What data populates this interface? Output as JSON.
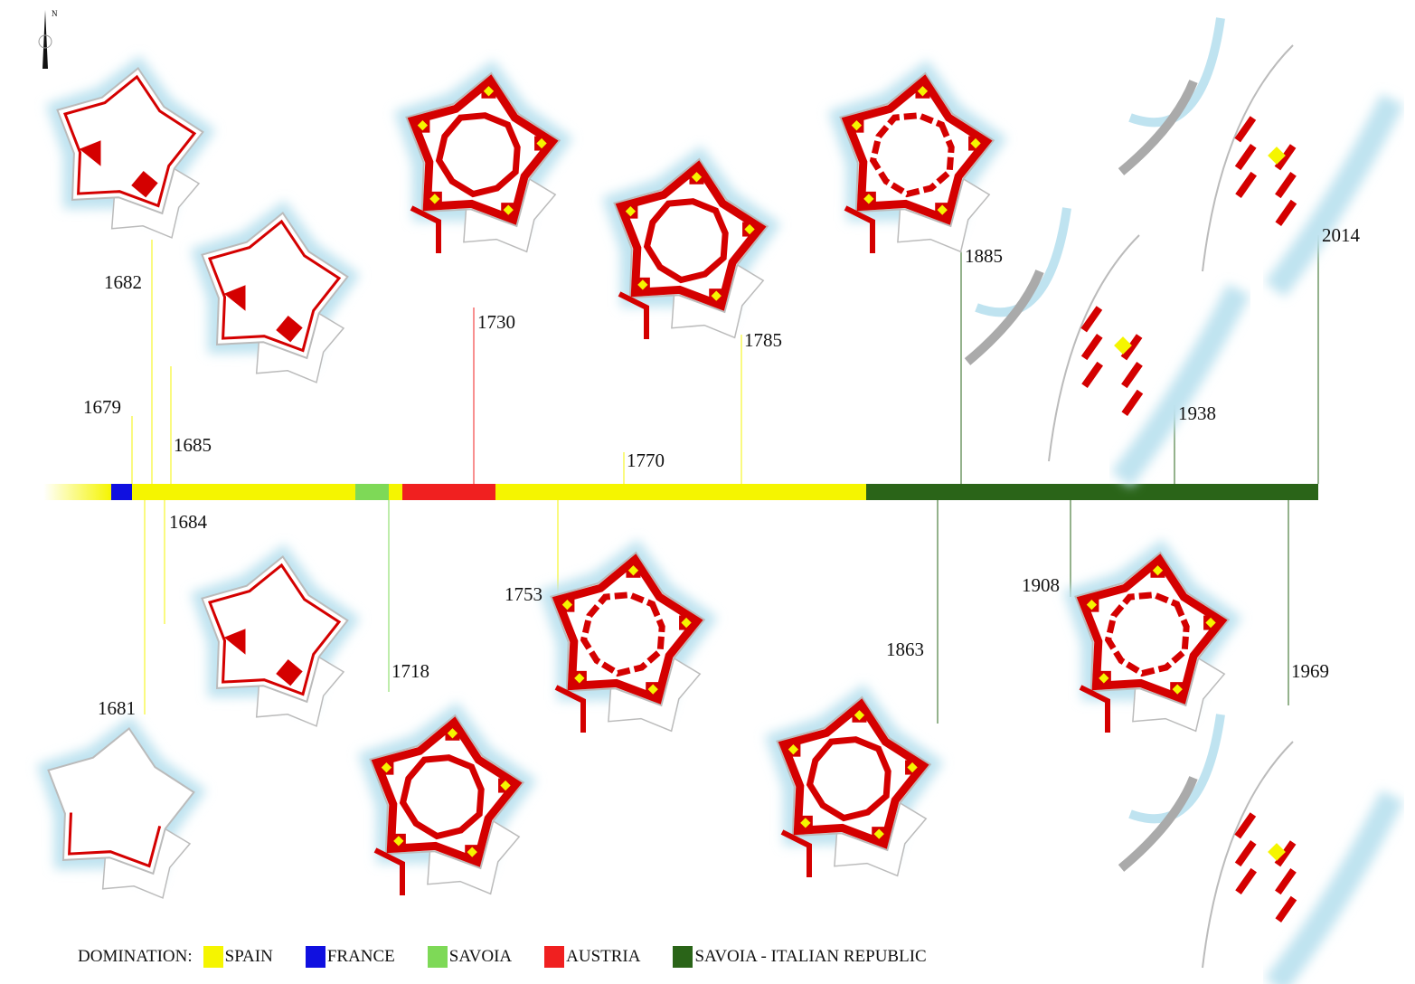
{
  "north_label": "N",
  "colors": {
    "spain": "#f5f500",
    "france": "#1010e0",
    "savoia": "#7ed957",
    "austria": "#f02020",
    "italy": "#2a6418",
    "fort_red": "#d40000",
    "water": "#bfe3f0",
    "outline": "#bbbbbb"
  },
  "timeline": [
    {
      "domination": "spain",
      "from": 1670,
      "to": 1679
    },
    {
      "domination": "france",
      "from": 1679,
      "to": 1681
    },
    {
      "domination": "spain",
      "from": 1681,
      "to": 1713
    },
    {
      "domination": "savoia",
      "from": 1713,
      "to": 1718
    },
    {
      "domination": "spain",
      "from": 1718,
      "to": 1720
    },
    {
      "domination": "austria",
      "from": 1720,
      "to": 1735
    },
    {
      "domination": "spain",
      "from": 1735,
      "to": 1861
    },
    {
      "domination": "italy",
      "from": 1861,
      "to": 2014
    }
  ],
  "years_above": [
    "1679",
    "1682",
    "1685",
    "1730",
    "1770",
    "1785",
    "1885",
    "1938",
    "2014"
  ],
  "years_below": [
    "1684",
    "1681",
    "1718",
    "1753",
    "1863",
    "1908",
    "1969"
  ],
  "legend": {
    "title": "DOMINATION:",
    "items": [
      {
        "label": "SPAIN",
        "color": "#f5f500"
      },
      {
        "label": "FRANCE",
        "color": "#1010e0"
      },
      {
        "label": "SAVOIA",
        "color": "#7ed957"
      },
      {
        "label": "AUSTRIA",
        "color": "#f02020"
      },
      {
        "label": "SAVOIA - ITALIAN REPUBLIC",
        "color": "#2a6418"
      }
    ]
  }
}
